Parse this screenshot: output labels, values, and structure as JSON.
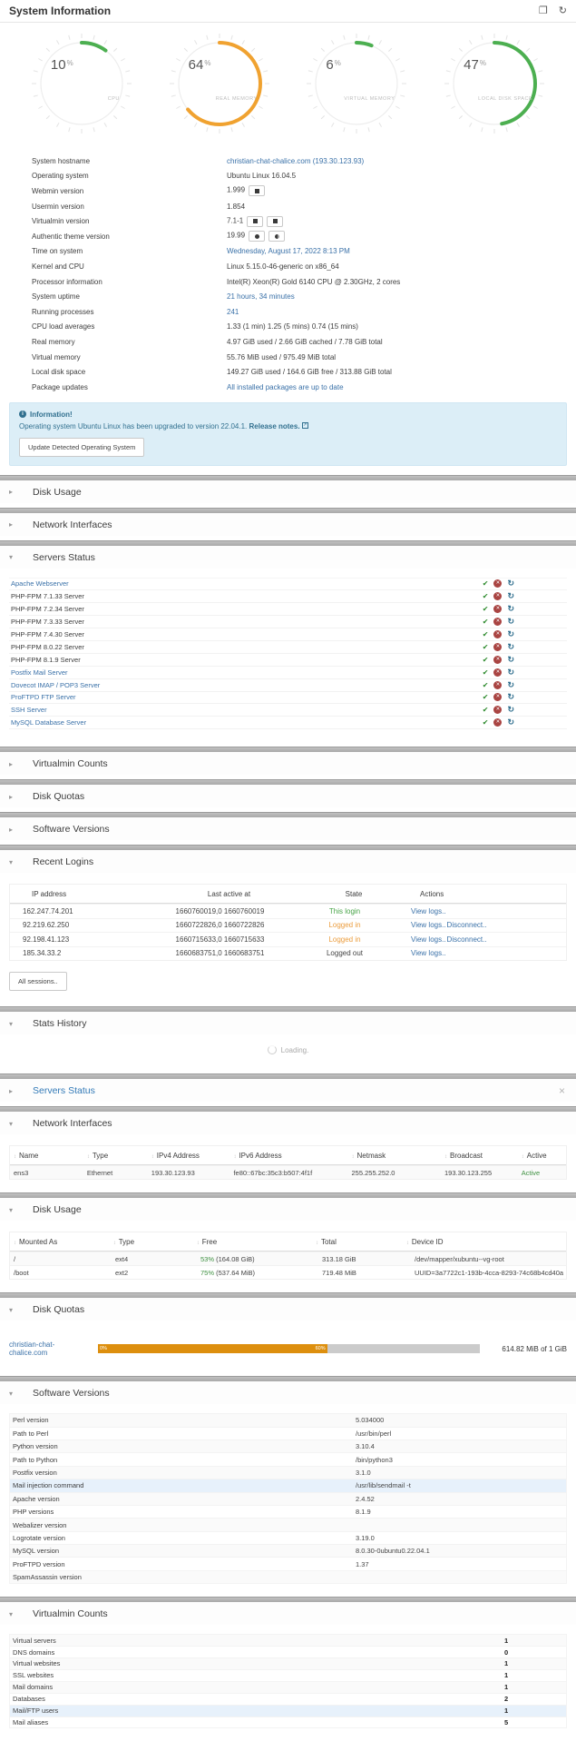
{
  "header": {
    "title": "System Information"
  },
  "colors": {
    "green": "#47a447",
    "orange": "#e8a33d",
    "link_blue": "#3a71a8",
    "alert_bg": "#dceef7",
    "alert_text": "#31708f",
    "quota_orange": "#dd8f0e"
  },
  "chart_data": [
    {
      "type": "pie",
      "title": "CPU",
      "values": [
        10
      ],
      "unit": "%",
      "color": "#4caf50"
    },
    {
      "type": "pie",
      "title": "REAL MEMORY",
      "values": [
        64
      ],
      "unit": "%",
      "color": "#f0a230"
    },
    {
      "type": "pie",
      "title": "VIRTUAL MEMORY",
      "values": [
        6
      ],
      "unit": "%",
      "color": "#4caf50"
    },
    {
      "type": "pie",
      "title": "LOCAL DISK SPACE",
      "values": [
        47
      ],
      "unit": "%",
      "color": "#4caf50"
    }
  ],
  "gauges": [
    {
      "value": 10,
      "label": "CPU",
      "color": "#4caf50"
    },
    {
      "value": 64,
      "label": "REAL MEMORY",
      "color": "#f0a230"
    },
    {
      "value": 6,
      "label": "VIRTUAL MEMORY",
      "color": "#4caf50"
    },
    {
      "value": 47,
      "label": "LOCAL DISK SPACE",
      "color": "#4caf50"
    }
  ],
  "system_info": {
    "rows": [
      {
        "label": "System hostname",
        "value": "christian-chat-chalice.com (193.30.123.93)",
        "link": true,
        "badges": []
      },
      {
        "label": "Operating system",
        "value": "Ubuntu Linux 16.04.5",
        "link": false,
        "badges": []
      },
      {
        "label": "Webmin version",
        "value": "1.999",
        "link": false,
        "badges": [
          "package"
        ]
      },
      {
        "label": "Usermin version",
        "value": "1.854",
        "link": false,
        "badges": []
      },
      {
        "label": "Virtualmin version",
        "value": "7.1-1",
        "link": false,
        "badges": [
          "gift",
          "package"
        ]
      },
      {
        "label": "Authentic theme version",
        "value": "19.99",
        "link": false,
        "badges": [
          "dot",
          "half-dot"
        ]
      },
      {
        "label": "Time on system",
        "value": "Wednesday, August 17, 2022 8:13 PM",
        "link": true,
        "badges": []
      },
      {
        "label": "Kernel and CPU",
        "value": "Linux 5.15.0-46-generic on x86_64",
        "link": false,
        "badges": []
      },
      {
        "label": "Processor information",
        "value": "Intel(R) Xeon(R) Gold 6140 CPU @ 2.30GHz, 2 cores",
        "link": false,
        "badges": []
      },
      {
        "label": "System uptime",
        "value": "21 hours, 34 minutes",
        "link": true,
        "badges": []
      },
      {
        "label": "Running processes",
        "value": "241",
        "link": true,
        "badges": []
      },
      {
        "label": "CPU load averages",
        "value": "1.33 (1 min) 1.25 (5 mins) 0.74 (15 mins)",
        "link": false,
        "badges": []
      },
      {
        "label": "Real memory",
        "value": "4.97 GiB used / 2.66 GiB cached / 7.78 GiB total",
        "link": false,
        "badges": []
      },
      {
        "label": "Virtual memory",
        "value": "55.76 MiB used / 975.49 MiB total",
        "link": false,
        "badges": []
      },
      {
        "label": "Local disk space",
        "value": "149.27 GiB used / 164.6 GiB free / 313.88 GiB total",
        "link": false,
        "badges": []
      },
      {
        "label": "Package updates",
        "value": "All installed packages are up to date",
        "link": true,
        "badges": []
      }
    ]
  },
  "alert": {
    "title": "Information!",
    "message": "Operating system Ubuntu Linux has been upgraded to version 22.04.1.",
    "link_label": "Release notes.",
    "button_label": "Update Detected Operating System"
  },
  "sections": {
    "disk_usage_collapsed": "Disk Usage",
    "network_interfaces_collapsed": "Network Interfaces",
    "servers_status": "Servers Status",
    "virtualmin_counts_collapsed": "Virtualmin Counts",
    "disk_quotas_collapsed": "Disk Quotas",
    "software_versions_collapsed": "Software Versions",
    "recent_logins": "Recent Logins",
    "stats_history": "Stats History",
    "servers_status_live": "Servers Status",
    "network_interfaces": "Network Interfaces",
    "disk_usage": "Disk Usage",
    "disk_quotas": "Disk Quotas",
    "software_versions": "Software Versions",
    "virtualmin_counts": "Virtualmin Counts"
  },
  "servers_status_list": {
    "action_icons": [
      "start",
      "stop",
      "restart"
    ],
    "rows": [
      {
        "name": "Apache Webserver",
        "link": true
      },
      {
        "name": "PHP-FPM 7.1.33 Server",
        "link": false
      },
      {
        "name": "PHP-FPM 7.2.34 Server",
        "link": false
      },
      {
        "name": "PHP-FPM 7.3.33 Server",
        "link": false
      },
      {
        "name": "PHP-FPM 7.4.30 Server",
        "link": false
      },
      {
        "name": "PHP-FPM 8.0.22 Server",
        "link": false
      },
      {
        "name": "PHP-FPM 8.1.9 Server",
        "link": false
      },
      {
        "name": "Postfix Mail Server",
        "link": true
      },
      {
        "name": "Dovecot IMAP / POP3 Server",
        "link": true
      },
      {
        "name": "ProFTPD FTP Server",
        "link": true
      },
      {
        "name": "SSH Server",
        "link": true
      },
      {
        "name": "MySQL Database Server",
        "link": true
      }
    ]
  },
  "recent_logins": {
    "headers": [
      "IP address",
      "Last active at",
      "State",
      "Actions"
    ],
    "rows": [
      {
        "ip": "162.247.74.201",
        "last_active": "1660760019,0 1660760019",
        "state": "This login",
        "state_color": "green",
        "actions": [
          "View logs.."
        ]
      },
      {
        "ip": "92.219.62.250",
        "last_active": "1660722826,0 1660722826",
        "state": "Logged in",
        "state_color": "orange",
        "actions": [
          "View logs..",
          "Disconnect.."
        ]
      },
      {
        "ip": "92.198.41.123",
        "last_active": "1660715633,0 1660715633",
        "state": "Logged in",
        "state_color": "orange",
        "actions": [
          "View logs..",
          "Disconnect.."
        ]
      },
      {
        "ip": "185.34.33.2",
        "last_active": "1660683751,0 1660683751",
        "state": "Logged out",
        "state_color": "none",
        "actions": [
          "View logs.."
        ]
      }
    ],
    "all_sessions_label": "All sessions.."
  },
  "stats_history": {
    "loading_label": "Loading."
  },
  "network_interfaces": {
    "headers": [
      "Name",
      "Type",
      "IPv4 Address",
      "IPv6 Address",
      "Netmask",
      "Broadcast",
      "Active"
    ],
    "rows": [
      {
        "name": "ens3",
        "type": "Ethernet",
        "ipv4": "193.30.123.93",
        "ipv6": "fe80::67bc:35c3:b507:4f1f",
        "netmask": "255.255.252.0",
        "broadcast": "193.30.123.255",
        "active": "Active"
      }
    ]
  },
  "disk_usage": {
    "headers": [
      "Mounted As",
      "Type",
      "Free",
      "Total",
      "Device ID"
    ],
    "rows": [
      {
        "mount": "/",
        "type": "ext4",
        "free_pct": "53%",
        "free_rest": " (164.08 GiB)",
        "total": "313.18 GiB",
        "device": "/dev/mapper/xubuntu--vg-root"
      },
      {
        "mount": "/boot",
        "type": "ext2",
        "free_pct": "75%",
        "free_rest": " (537.64 MiB)",
        "total": "719.48 MiB",
        "device": "UUID=3a7722c1-193b-4cca-8293-74c68b4cd40a"
      }
    ]
  },
  "disk_quotas": {
    "domain": "christian-chat-chalice.com",
    "start_label": "0%",
    "used_label": "60%",
    "used_pct": 60,
    "total_label": "614.82 MiB of 1 GiB"
  },
  "software_versions": {
    "rows": [
      {
        "label": "Perl version",
        "value": "5.034000",
        "highlight": false
      },
      {
        "label": "Path to Perl",
        "value": "/usr/bin/perl",
        "highlight": false
      },
      {
        "label": "Python version",
        "value": "3.10.4",
        "highlight": false
      },
      {
        "label": "Path to Python",
        "value": "/bin/python3",
        "highlight": false
      },
      {
        "label": "Postfix version",
        "value": "3.1.0",
        "highlight": false
      },
      {
        "label": "Mail injection command",
        "value": "/usr/lib/sendmail -t",
        "highlight": true
      },
      {
        "label": "Apache version",
        "value": "2.4.52",
        "highlight": false
      },
      {
        "label": "PHP versions",
        "value": "8.1.9",
        "highlight": false
      },
      {
        "label": "Webalizer version",
        "value": "",
        "highlight": false
      },
      {
        "label": "Logrotate version",
        "value": "3.19.0",
        "highlight": false
      },
      {
        "label": "MySQL version",
        "value": "8.0.30-0ubuntu0.22.04.1",
        "highlight": false
      },
      {
        "label": "ProFTPD version",
        "value": "1.37",
        "highlight": false
      },
      {
        "label": "SpamAssassin version",
        "value": "",
        "highlight": false
      }
    ]
  },
  "virtualmin_counts": {
    "rows": [
      {
        "label": "Virtual servers",
        "value": "1",
        "highlight": false
      },
      {
        "label": "DNS domains",
        "value": "0",
        "highlight": false
      },
      {
        "label": "Virtual websites",
        "value": "1",
        "highlight": false
      },
      {
        "label": "SSL websites",
        "value": "1",
        "highlight": false
      },
      {
        "label": "Mail domains",
        "value": "1",
        "highlight": false
      },
      {
        "label": "Databases",
        "value": "2",
        "highlight": false
      },
      {
        "label": "Mail/FTP users",
        "value": "1",
        "highlight": true
      },
      {
        "label": "Mail aliases",
        "value": "5",
        "highlight": false
      }
    ]
  }
}
